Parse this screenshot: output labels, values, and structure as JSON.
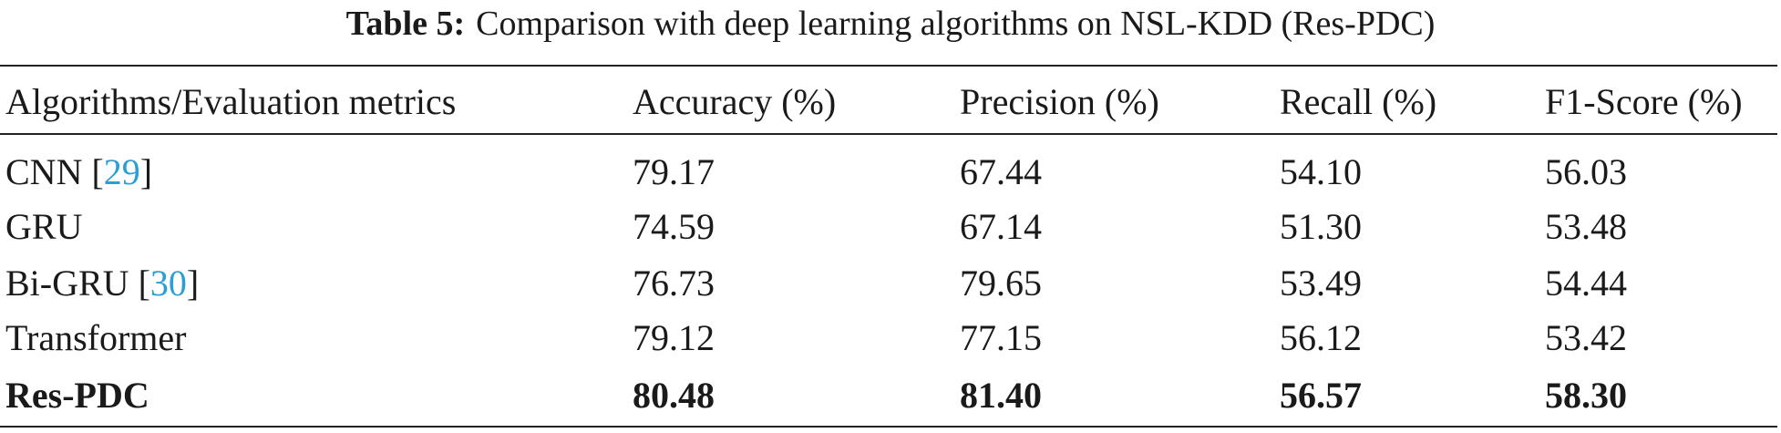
{
  "caption": {
    "label": "Table 5:",
    "text": "Comparison with deep learning algorithms on NSL-KDD (Res-PDC)"
  },
  "table": {
    "header": [
      "Algorithms/Evaluation metrics",
      "Accuracy (%)",
      "Precision (%)",
      "Recall (%)",
      "F1-Score (%)"
    ],
    "rows": [
      {
        "label": [
          "CNN [",
          "29",
          "]"
        ],
        "cells": [
          "79.17",
          "67.44",
          "54.10",
          "56.03"
        ],
        "bold": false
      },
      {
        "label": [
          "GRU"
        ],
        "cells": [
          "74.59",
          "67.14",
          "51.30",
          "53.48"
        ],
        "bold": false
      },
      {
        "label": [
          "Bi-GRU [",
          "30",
          "]"
        ],
        "cells": [
          "76.73",
          "79.65",
          "53.49",
          "54.44"
        ],
        "bold": false
      },
      {
        "label": [
          "Transformer"
        ],
        "cells": [
          "79.12",
          "77.15",
          "56.12",
          "53.42"
        ],
        "bold": false
      },
      {
        "label": [
          "Res-PDC"
        ],
        "cells": [
          "80.48",
          "81.40",
          "56.57",
          "58.30"
        ],
        "bold": true
      }
    ]
  }
}
